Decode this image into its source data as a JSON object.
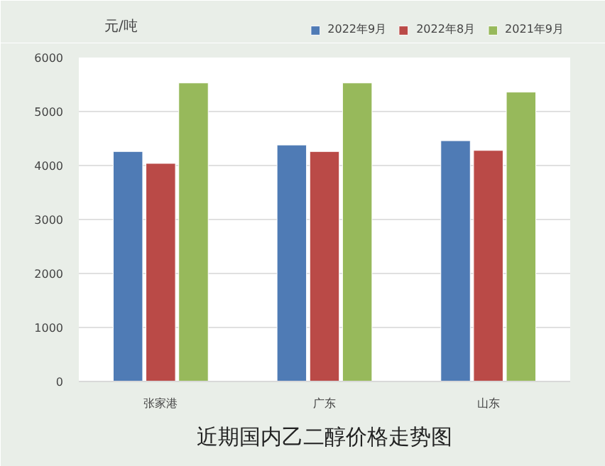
{
  "chart_data": {
    "type": "bar",
    "title": "近期国内乙二醇价格走势图",
    "ylabel": "元/吨",
    "categories": [
      "张家港",
      "广东",
      "山东"
    ],
    "series": [
      {
        "name": "2022年9月",
        "color": "#4f7bb5",
        "values": [
          4260,
          4380,
          4460
        ]
      },
      {
        "name": "2022年8月",
        "color": "#ba4a47",
        "values": [
          4040,
          4260,
          4280
        ]
      },
      {
        "name": "2021年9月",
        "color": "#97b95b",
        "values": [
          5530,
          5530,
          5360
        ]
      }
    ],
    "ylim": [
      0,
      6000
    ],
    "yticks": [
      0,
      1000,
      2000,
      3000,
      4000,
      5000,
      6000
    ],
    "grid": "y",
    "legend": "top right"
  }
}
